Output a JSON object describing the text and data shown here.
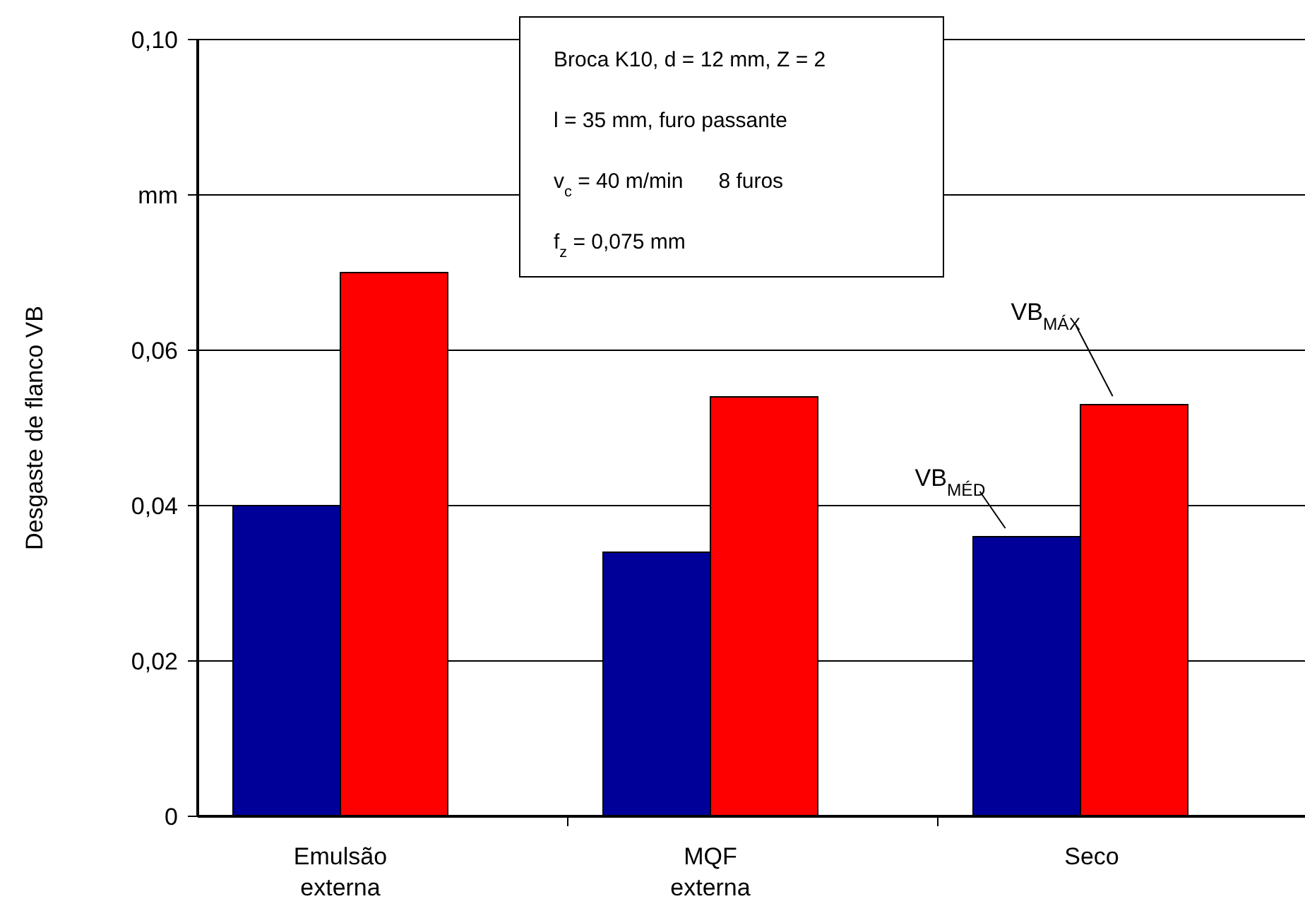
{
  "chart_data": {
    "type": "bar",
    "ylabel": "Desgaste de flanco VB",
    "categories": [
      "Emulsão externa",
      "MQF externa",
      "Seco"
    ],
    "series": [
      {
        "name": "VB$_{MÉD}$",
        "color": "#000099",
        "values": [
          0.04,
          0.034,
          0.036
        ]
      },
      {
        "name": "VB$_{MÁX}$",
        "color": "#ff0000",
        "values": [
          0.07,
          0.054,
          0.053
        ]
      }
    ],
    "ylim": [
      0,
      0.1
    ],
    "yticks": [
      {
        "value": 0,
        "label": "0"
      },
      {
        "value": 0.02,
        "label": "0,02"
      },
      {
        "value": 0.04,
        "label": "0,04"
      },
      {
        "value": 0.06,
        "label": "0,06"
      },
      {
        "value": 0.08,
        "label": "mm"
      },
      {
        "value": 0.1,
        "label": "0,10"
      }
    ],
    "grid": "y",
    "legend": false,
    "annotations": [
      "Broca K10, d = 12 mm, Z = 2",
      "l = 35 mm, furo passante",
      "v$_{c}$ = 40 m/min      8 furos",
      "f$_{z}$ = 0,075 mm"
    ]
  }
}
